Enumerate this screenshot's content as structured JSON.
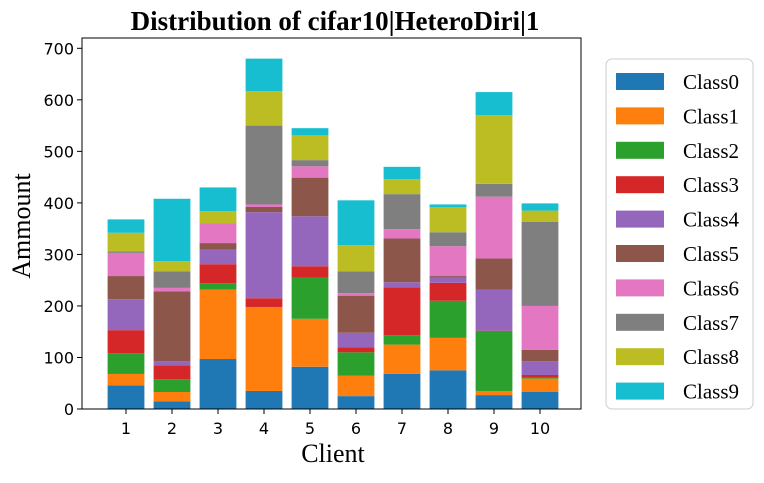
{
  "chart_data": {
    "type": "bar",
    "stacked": true,
    "title": "Distribution of cifar10|HeteroDiri|1",
    "xlabel": "Client",
    "ylabel": "Ammount",
    "ylim": [
      0,
      720
    ],
    "yticks": [
      0,
      100,
      200,
      300,
      400,
      500,
      600,
      700
    ],
    "categories": [
      "1",
      "2",
      "3",
      "4",
      "5",
      "6",
      "7",
      "8",
      "9",
      "10"
    ],
    "legend_position": "right",
    "grid": false,
    "series": [
      {
        "name": "Class0",
        "color": "#1f77b4",
        "values": [
          46,
          15,
          97,
          35,
          82,
          25,
          68,
          75,
          27,
          33
        ]
      },
      {
        "name": "Class1",
        "color": "#ff7f0e",
        "values": [
          22,
          18,
          135,
          163,
          93,
          40,
          57,
          63,
          8,
          26
        ]
      },
      {
        "name": "Class2",
        "color": "#2ca02c",
        "values": [
          40,
          25,
          12,
          0,
          80,
          45,
          18,
          72,
          115,
          2
        ]
      },
      {
        "name": "Class3",
        "color": "#d62728",
        "values": [
          45,
          27,
          37,
          17,
          22,
          10,
          93,
          35,
          2,
          5
        ]
      },
      {
        "name": "Class4",
        "color": "#9467bd",
        "values": [
          60,
          8,
          28,
          167,
          97,
          28,
          10,
          10,
          80,
          27
        ]
      },
      {
        "name": "Class5",
        "color": "#8c564b",
        "values": [
          45,
          135,
          13,
          10,
          75,
          72,
          85,
          3,
          60,
          22
        ]
      },
      {
        "name": "Class6",
        "color": "#e377c2",
        "values": [
          45,
          7,
          38,
          5,
          22,
          5,
          18,
          58,
          120,
          85
        ]
      },
      {
        "name": "Class7",
        "color": "#7f7f7f",
        "values": [
          3,
          32,
          0,
          153,
          12,
          42,
          68,
          27,
          25,
          163
        ]
      },
      {
        "name": "Class8",
        "color": "#bcbd22",
        "values": [
          36,
          20,
          24,
          67,
          48,
          51,
          29,
          49,
          133,
          22
        ]
      },
      {
        "name": "Class9",
        "color": "#17becf",
        "values": [
          26,
          121,
          46,
          63,
          14,
          87,
          24,
          5,
          45,
          14
        ]
      }
    ]
  }
}
